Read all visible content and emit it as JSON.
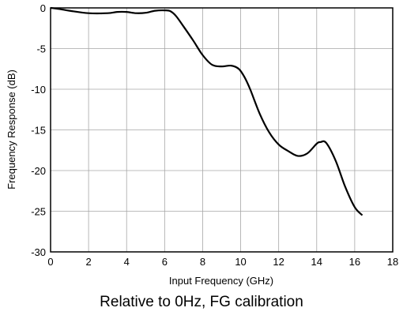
{
  "caption": "Relative to 0Hz, FG calibration",
  "chart_data": {
    "type": "line",
    "title": "",
    "xlabel": "Input Frequency (GHz)",
    "ylabel": "Frequency Response (dB)",
    "xlim": [
      0,
      18
    ],
    "ylim": [
      -30,
      0
    ],
    "xticks": [
      0,
      2,
      4,
      6,
      8,
      10,
      12,
      14,
      16,
      18
    ],
    "yticks": [
      0,
      -5,
      -10,
      -15,
      -20,
      -25,
      -30
    ],
    "grid": true,
    "legend": "none",
    "line_color": "#000000",
    "series": [
      {
        "x": [
          0,
          0.5,
          1,
          2,
          3,
          3.5,
          4,
          4.5,
          5,
          5.5,
          6,
          6.3,
          6.6,
          7,
          7.5,
          8,
          8.5,
          9,
          9.5,
          9.9,
          10.2,
          10.5,
          11,
          11.5,
          12,
          12.5,
          13,
          13.5,
          14,
          14.2,
          14.5,
          15,
          15.5,
          16,
          16.4
        ],
        "y": [
          0,
          -0.15,
          -0.35,
          -0.65,
          -0.65,
          -0.5,
          -0.5,
          -0.65,
          -0.6,
          -0.35,
          -0.3,
          -0.4,
          -1.0,
          -2.3,
          -4.0,
          -5.8,
          -7.0,
          -7.2,
          -7.1,
          -7.5,
          -8.5,
          -10.0,
          -13.0,
          -15.3,
          -16.8,
          -17.6,
          -18.2,
          -17.9,
          -16.7,
          -16.5,
          -16.6,
          -18.8,
          -22.0,
          -24.5,
          -25.5
        ]
      }
    ]
  }
}
